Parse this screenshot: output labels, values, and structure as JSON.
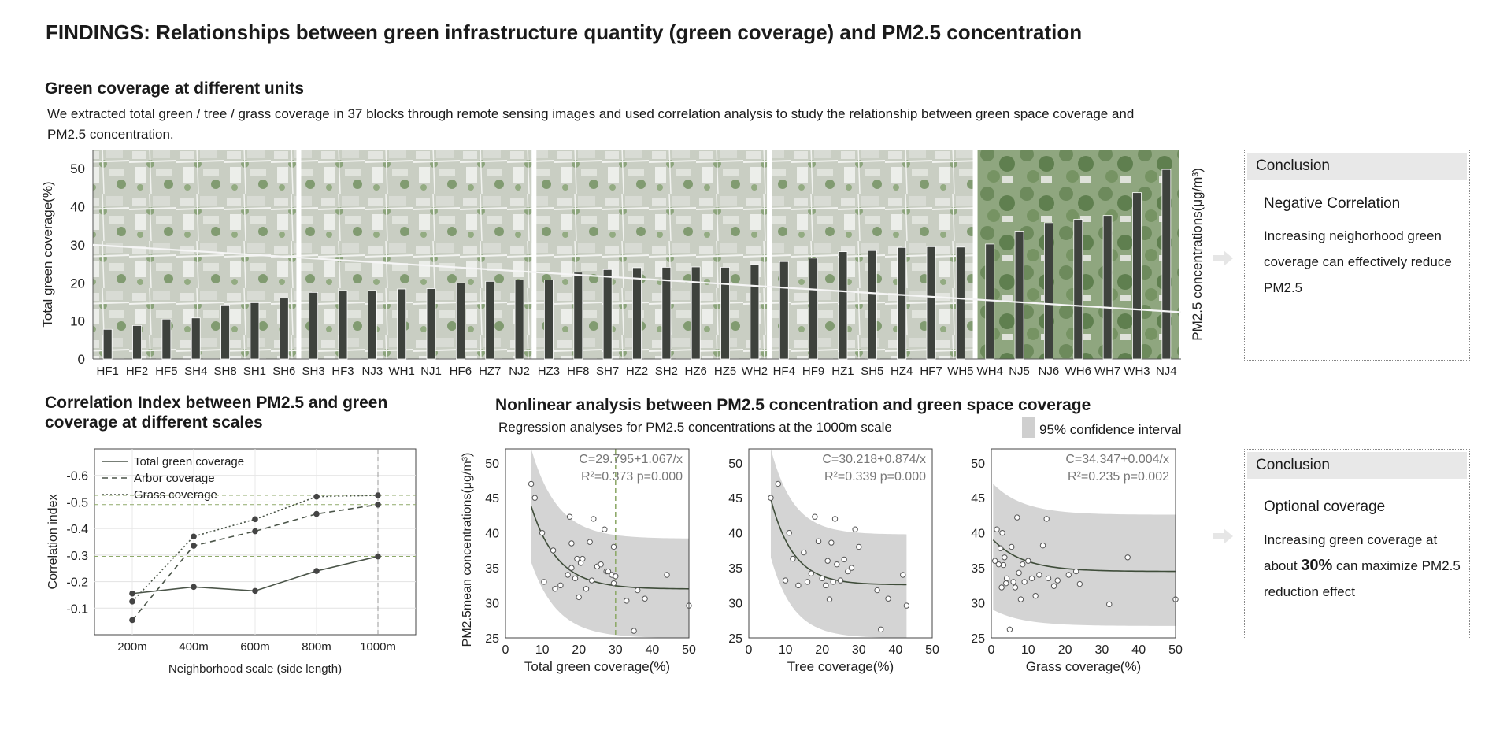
{
  "title": "FINDINGS: Relationships between green infrastructure quantity (green coverage) and PM2.5 concentration",
  "section1": {
    "heading": "Green coverage at different units",
    "description": "We extracted total green / tree / grass coverage in 37 blocks through remote sensing images and used correlation analysis to study the relationship between green space coverage and PM2.5 concentration."
  },
  "conclusion1": {
    "header": "Conclusion",
    "subtitle": "Negative Correlation",
    "text": "Increasing neighorhood green coverage can effectively reduce PM2.5"
  },
  "section2": {
    "heading_line1": "Correlation Index between PM2.5 and green",
    "heading_line2": "coverage at different scales"
  },
  "section3": {
    "heading": "Nonlinear analysis between PM2.5 concentration and green space coverage",
    "subtitle": "Regression analyses for PM2.5 concentrations at the 1000m scale",
    "ci_legend": "95% confidence interval"
  },
  "conclusion2": {
    "header": "Conclusion",
    "subtitle": "Optional coverage",
    "text_pre": "Increasing green coverage at about ",
    "text_bold": "30%",
    "text_post": " can maximize PM2.5 reduction effect"
  },
  "colors": {
    "bar": "#3e423d",
    "line": "#4a5448",
    "ci": "#d4d4d4",
    "guide": "#8faa6a",
    "photo_green": "#7d9a6a"
  },
  "chart_data": [
    {
      "type": "bar",
      "title": "",
      "ylabel": "Total green coverage(%)",
      "ylabel_right": "PM2.5 concentrations(μg/m³)",
      "ylim": [
        0,
        55
      ],
      "yticks": [
        0,
        10,
        20,
        30,
        40,
        50
      ],
      "categories": [
        "HF1",
        "HF2",
        "HF5",
        "SH4",
        "SH8",
        "SH1",
        "SH6",
        "SH3",
        "HF3",
        "NJ3",
        "WH1",
        "NJ1",
        "HF6",
        "HZ7",
        "NJ2",
        "HZ3",
        "HF8",
        "SH7",
        "HZ2",
        "SH2",
        "HZ6",
        "HZ5",
        "WH2",
        "HF4",
        "HF9",
        "HZ1",
        "SH5",
        "HZ4",
        "HF7",
        "WH5",
        "WH4",
        "NJ5",
        "NJ6",
        "WH6",
        "WH7",
        "WH3",
        "NJ4"
      ],
      "values": [
        7.8,
        8.8,
        10.5,
        10.8,
        14.2,
        14.8,
        16,
        17.5,
        18,
        18,
        18.4,
        18.5,
        20,
        20.4,
        20.8,
        20.8,
        22.8,
        23.5,
        24,
        24.1,
        24.2,
        24.1,
        24.8,
        25.6,
        26.5,
        28.2,
        28.5,
        29.3,
        29.5,
        29.4,
        30.2,
        33.6,
        35.8,
        36.7,
        37.7,
        43.7,
        49.8
      ],
      "trend_line": {
        "start": 30,
        "end": 12.3
      },
      "grid": false
    },
    {
      "type": "line",
      "title": "",
      "xlabel": "Neighborhood scale (side length)",
      "ylabel": "Correlation index",
      "categories": [
        "200m",
        "400m",
        "600m",
        "800m",
        "1000m"
      ],
      "ylim": [
        0,
        -0.7
      ],
      "yticks": [
        -0.1,
        -0.2,
        -0.3,
        -0.4,
        -0.5,
        -0.6
      ],
      "ytick_labels": [
        "-0.1",
        "-0.2",
        "-0.3",
        "-0.4",
        "-0.5",
        "-0.6"
      ],
      "series": [
        {
          "name": "Total green coverage",
          "style": "solid",
          "values": [
            -0.155,
            -0.18,
            -0.165,
            -0.24,
            -0.295
          ]
        },
        {
          "name": "Arbor coverage",
          "style": "dashed",
          "values": [
            -0.055,
            -0.335,
            -0.39,
            -0.455,
            -0.49
          ]
        },
        {
          "name": "Grass coverage",
          "style": "dotted",
          "values": [
            -0.125,
            -0.37,
            -0.435,
            -0.52,
            -0.525
          ]
        }
      ],
      "guides_y": [
        -0.295,
        -0.49,
        -0.525
      ],
      "guide_x": "1000m",
      "grid": true,
      "legend": "top-left"
    },
    {
      "type": "scatter",
      "ylabel": "PM2.5mean concentrations(μg/m³)",
      "xlabel": "Total green coverage(%)",
      "equation": "C=29.795+1.067/x",
      "stats": "R²=0.373 p=0.000",
      "model": {
        "a": 29.795,
        "b": 1.067,
        "shape": "inverse"
      },
      "xlim": [
        0,
        50
      ],
      "ylim": [
        25,
        52
      ],
      "xticks": [
        0,
        10,
        20,
        30,
        40,
        50
      ],
      "yticks": [
        25,
        30,
        35,
        40,
        45,
        50
      ],
      "fit_range": [
        7,
        50
      ],
      "fit_start": 43.8,
      "fit_end": 32,
      "ci_upper": {
        "start": 52,
        "end": 39.2
      },
      "ci_lower": {
        "start": 35.8,
        "end": 25
      },
      "guide_x": 30,
      "points": [
        [
          7,
          47
        ],
        [
          8,
          45
        ],
        [
          10,
          40
        ],
        [
          10.5,
          33
        ],
        [
          13,
          37.5
        ],
        [
          13.5,
          32
        ],
        [
          15,
          32.5
        ],
        [
          17,
          34
        ],
        [
          17.5,
          42.3
        ],
        [
          18,
          38.5
        ],
        [
          18,
          35
        ],
        [
          19,
          33.5
        ],
        [
          19.5,
          36.3
        ],
        [
          20,
          30.8
        ],
        [
          20.5,
          35.7
        ],
        [
          21,
          36.3
        ],
        [
          22,
          32
        ],
        [
          23,
          38.7
        ],
        [
          23.5,
          33.2
        ],
        [
          24,
          42
        ],
        [
          25,
          35.2
        ],
        [
          26,
          35.5
        ],
        [
          27,
          40.5
        ],
        [
          27.5,
          34.5
        ],
        [
          28,
          34.5
        ],
        [
          29,
          34
        ],
        [
          29.5,
          38
        ],
        [
          29.5,
          32.8
        ],
        [
          30,
          33.8
        ],
        [
          33,
          30.3
        ],
        [
          35,
          26
        ],
        [
          36,
          31.8
        ],
        [
          38,
          30.6
        ],
        [
          44,
          34
        ],
        [
          50,
          29.6
        ]
      ]
    },
    {
      "type": "scatter",
      "xlabel": "Tree coverage(%)",
      "equation": "C=30.218+0.874/x",
      "stats": "R²=0.339 p=0.000",
      "model": {
        "a": 30.218,
        "b": 0.874,
        "shape": "inverse"
      },
      "xlim": [
        0,
        50
      ],
      "ylim": [
        25,
        52
      ],
      "xticks": [
        0,
        10,
        20,
        30,
        40,
        50
      ],
      "yticks": [
        25,
        30,
        35,
        40,
        45,
        50
      ],
      "fit_range": [
        6,
        43
      ],
      "fit_start": 44.8,
      "fit_end": 32.6,
      "ci_upper": {
        "start": 52,
        "end": 39.8
      },
      "ci_lower": {
        "start": 36.5,
        "end": 25
      },
      "points": [
        [
          6,
          45
        ],
        [
          8,
          47
        ],
        [
          10,
          33.2
        ],
        [
          11,
          40
        ],
        [
          12,
          36.3
        ],
        [
          13.5,
          32.5
        ],
        [
          15,
          37.2
        ],
        [
          16,
          33
        ],
        [
          17,
          34.2
        ],
        [
          18,
          42.3
        ],
        [
          19,
          38.8
        ],
        [
          20,
          33.5
        ],
        [
          21,
          32.5
        ],
        [
          21.5,
          36
        ],
        [
          22,
          30.5
        ],
        [
          22.5,
          38.6
        ],
        [
          23,
          33
        ],
        [
          23.5,
          42
        ],
        [
          24,
          35.5
        ],
        [
          25,
          33.2
        ],
        [
          26,
          36.2
        ],
        [
          27,
          34.5
        ],
        [
          28,
          35
        ],
        [
          29,
          40.5
        ],
        [
          30,
          38
        ],
        [
          35,
          31.8
        ],
        [
          36,
          26.2
        ],
        [
          38,
          30.6
        ],
        [
          42,
          34
        ],
        [
          43,
          29.6
        ]
      ]
    },
    {
      "type": "scatter",
      "xlabel": "Grass coverage(%)",
      "equation": "C=34.347+0.004/x",
      "stats": "R²=0.235 p=0.002",
      "model": {
        "a": 34.347,
        "b": 0.004,
        "shape": "inverse"
      },
      "xlim": [
        0,
        50
      ],
      "ylim": [
        25,
        52
      ],
      "xticks": [
        0,
        10,
        20,
        30,
        40,
        50
      ],
      "yticks": [
        25,
        30,
        35,
        40,
        45,
        50
      ],
      "fit_range": [
        0.5,
        50
      ],
      "fit_start": 39,
      "fit_end": 34.5,
      "ci_upper": {
        "start": 47,
        "end": 42.6
      },
      "ci_lower": {
        "start": 29,
        "end": 26.7
      },
      "points": [
        [
          1,
          36
        ],
        [
          1.5,
          40.5
        ],
        [
          2,
          35.5
        ],
        [
          2.5,
          37.8
        ],
        [
          2.8,
          32.2
        ],
        [
          3,
          40
        ],
        [
          3.3,
          35.4
        ],
        [
          3.6,
          36.5
        ],
        [
          4,
          32.8
        ],
        [
          4.2,
          33.5
        ],
        [
          5,
          26.2
        ],
        [
          5.5,
          38
        ],
        [
          6,
          33
        ],
        [
          6.5,
          32.2
        ],
        [
          7,
          42.2
        ],
        [
          7.5,
          34.3
        ],
        [
          8,
          30.5
        ],
        [
          8.5,
          35.5
        ],
        [
          9,
          33
        ],
        [
          10,
          36
        ],
        [
          11,
          33.5
        ],
        [
          12,
          31
        ],
        [
          13,
          34
        ],
        [
          14,
          38.2
        ],
        [
          15,
          42
        ],
        [
          15.5,
          33.5
        ],
        [
          17,
          32.4
        ],
        [
          18,
          33.2
        ],
        [
          21,
          34
        ],
        [
          23,
          34.5
        ],
        [
          24,
          32.7
        ],
        [
          32,
          29.8
        ],
        [
          37,
          36.5
        ],
        [
          50,
          30.5
        ]
      ]
    }
  ]
}
